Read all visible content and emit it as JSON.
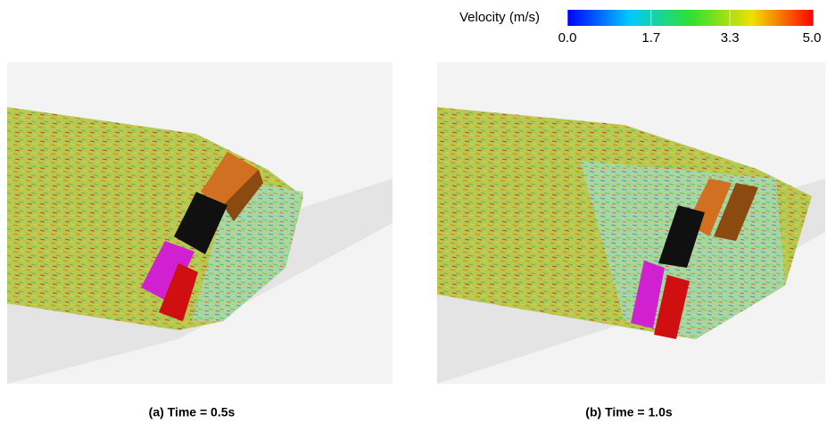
{
  "colorbar": {
    "label": "Velocity (m/s)",
    "range": [
      0,
      5
    ],
    "ticks": [
      {
        "value": 0,
        "label": "0.0"
      },
      {
        "value": 1.7,
        "label": "1.7"
      },
      {
        "value": 3.3,
        "label": "3.3"
      },
      {
        "value": 5,
        "label": "5.0"
      }
    ]
  },
  "panels": [
    {
      "caption": "(a) Time = 0.5s"
    },
    {
      "caption": "(b) Time = 1.0s"
    }
  ]
}
